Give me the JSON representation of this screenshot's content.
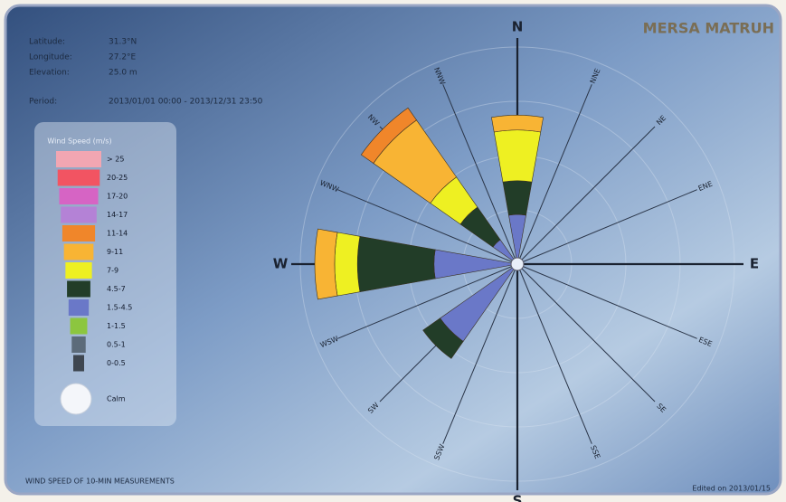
{
  "station": "MERSA MATRUH",
  "info": [
    {
      "label": "Latitude:",
      "value": "31.3°N"
    },
    {
      "label": "Longitude:",
      "value": "27.2°E"
    },
    {
      "label": "Elevation:",
      "value": "25.0 m"
    },
    {
      "label": "Period:",
      "value": "2013/01/01 00:00 - 2013/12/31 23:50"
    }
  ],
  "footer_left": "WIND SPEED OF 10-MIN MEASUREMENTS",
  "footer_right": "Edited on 2013/01/15",
  "chart_data": {
    "type": "windrose",
    "legend_title": "Wind Speed (m/s)",
    "calm_label": "Calm",
    "directions": [
      "N",
      "NNE",
      "NE",
      "ENE",
      "E",
      "ESE",
      "SE",
      "SSE",
      "S",
      "SSW",
      "SW",
      "WSW",
      "W",
      "WNW",
      "NW",
      "NNW"
    ],
    "series": [
      {
        "name": "0-0.5",
        "color": "#3e4650",
        "values": [
          0,
          0,
          0,
          0,
          0,
          0,
          0,
          0,
          0,
          0,
          0,
          0,
          0,
          0,
          0,
          0
        ]
      },
      {
        "name": "0.5-1",
        "color": "#5c6b7a",
        "values": [
          0,
          0,
          0,
          0,
          0,
          0,
          0,
          0,
          0,
          0,
          0,
          0,
          0,
          0,
          0,
          0
        ]
      },
      {
        "name": "1-1.5",
        "color": "#8cc63f",
        "values": [
          0,
          0,
          0,
          0,
          0,
          0,
          0,
          0,
          0,
          0,
          0,
          0,
          0,
          0,
          0,
          0
        ]
      },
      {
        "name": "1.5-4.5",
        "color": "#6a78c8",
        "values": [
          5,
          0,
          0,
          0,
          0,
          0,
          0,
          0,
          0,
          0,
          9.5,
          0,
          8.4,
          0,
          3,
          0
        ]
      },
      {
        "name": "4.5-7",
        "color": "#223d28",
        "values": [
          3.4,
          0,
          0,
          0,
          0,
          0,
          0,
          0,
          0,
          0,
          2.1,
          0,
          7.7,
          0,
          4,
          0
        ]
      },
      {
        "name": "7-9",
        "color": "#eef022",
        "values": [
          5.1,
          0,
          0,
          0,
          0,
          0,
          0,
          0,
          0,
          0,
          0,
          0,
          2.3,
          0,
          3.7,
          0
        ]
      },
      {
        "name": "9-11",
        "color": "#f8b434",
        "values": [
          1.5,
          0,
          0,
          0,
          0,
          0,
          0,
          0,
          0,
          0,
          0,
          0,
          2,
          0,
          7,
          0
        ]
      },
      {
        "name": "11-14",
        "color": "#f0862a",
        "values": [
          0,
          0,
          0,
          0,
          0,
          0,
          0,
          0,
          0,
          0,
          0,
          0,
          0,
          0,
          1.5,
          0
        ]
      },
      {
        "name": "14-17",
        "color": "#b482d6",
        "values": [
          0,
          0,
          0,
          0,
          0,
          0,
          0,
          0,
          0,
          0,
          0,
          0,
          0,
          0,
          0,
          0
        ]
      },
      {
        "name": "17-20",
        "color": "#d664c4",
        "values": [
          0,
          0,
          0,
          0,
          0,
          0,
          0,
          0,
          0,
          0,
          0,
          0,
          0,
          0,
          0,
          0
        ]
      },
      {
        "name": "20-25",
        "color": "#f25462",
        "values": [
          0,
          0,
          0,
          0,
          0,
          0,
          0,
          0,
          0,
          0,
          0,
          0,
          0,
          0,
          0,
          0
        ]
      },
      {
        "name": "> 25",
        "color": "#f2a6b2",
        "values": [
          0,
          0,
          0,
          0,
          0,
          0,
          0,
          0,
          0,
          0,
          0,
          0,
          0,
          0,
          0,
          0
        ]
      }
    ]
  }
}
